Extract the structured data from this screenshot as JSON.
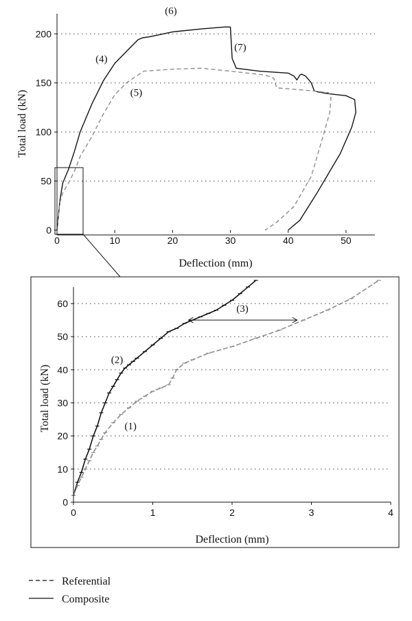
{
  "legend": [
    {
      "label": "Referential",
      "style": "dashed",
      "color": "#111111"
    },
    {
      "label": "Composite",
      "style": "solid",
      "color": "#111111"
    }
  ],
  "colors": {
    "composite": "#111111",
    "referential": "#8c8c8c"
  },
  "chart_data": [
    {
      "type": "line",
      "xlabel": "Deflection (mm)",
      "ylabel": "Total load (kN)",
      "xlim": [
        0,
        55
      ],
      "ylim": [
        0,
        210
      ],
      "xticks": [
        0,
        10,
        20,
        30,
        40,
        50
      ],
      "yticks": [
        0,
        50,
        100,
        150,
        200
      ],
      "grid": "horizontal dotted",
      "annotations": [
        {
          "text": "(4)",
          "x": 7.7,
          "y": 171
        },
        {
          "text": "(5)",
          "x": 13.7,
          "y": 137
        },
        {
          "text": "(6)",
          "x": 19.7,
          "y": 220
        },
        {
          "text": "(7)",
          "x": 31.7,
          "y": 183
        }
      ],
      "series": [
        {
          "name": "Composite",
          "style": "solid",
          "x": [
            0,
            0.5,
            1,
            2,
            3,
            4,
            6,
            8,
            10,
            12,
            14,
            14.8,
            16,
            20,
            25,
            29,
            30,
            30.3,
            31,
            35,
            40,
            41,
            41.5,
            42,
            42.3,
            43,
            44,
            44.5,
            45,
            46,
            47,
            50,
            51.5,
            51.7,
            51,
            49,
            45,
            42,
            40
          ],
          "y": [
            0,
            30,
            48,
            62,
            80,
            100,
            128,
            152,
            170,
            182,
            194,
            196,
            197,
            202,
            205,
            207,
            207,
            175,
            165,
            162,
            160,
            157,
            153,
            158,
            159,
            157,
            150,
            142,
            141,
            140,
            139,
            137,
            133,
            120,
            105,
            78,
            38,
            10,
            0
          ]
        },
        {
          "name": "Referential",
          "style": "dashed",
          "x": [
            0,
            0.5,
            1,
            2,
            3,
            4,
            6,
            8,
            10,
            12,
            14,
            15,
            20,
            25,
            30,
            36,
            37.5,
            38,
            40,
            44,
            47,
            47.4,
            47.2,
            46,
            44,
            41,
            38,
            36
          ],
          "y": [
            0,
            28,
            38,
            48,
            60,
            75,
            95,
            118,
            138,
            150,
            158,
            162,
            164,
            165,
            162,
            158,
            155,
            145,
            144,
            142,
            140,
            135,
            120,
            95,
            55,
            24,
            8,
            0
          ]
        }
      ]
    },
    {
      "type": "line",
      "xlabel": "Deflection (mm)",
      "ylabel": "Total load (kN)",
      "xlim": [
        0,
        4
      ],
      "ylim": [
        0,
        66
      ],
      "xticks": [
        0,
        1,
        2,
        3,
        4
      ],
      "yticks": [
        0,
        10,
        20,
        30,
        40,
        50,
        60
      ],
      "grid": "horizontal dotted",
      "annotations": [
        {
          "text": "(1)",
          "x": 0.72,
          "y": 22
        },
        {
          "text": "(2)",
          "x": 0.55,
          "y": 42
        },
        {
          "text": "(3)",
          "x": 2.13,
          "y": 57.5
        }
      ],
      "arrow": {
        "x1": 1.45,
        "x2": 2.82,
        "y": 55
      },
      "series": [
        {
          "name": "Composite",
          "style": "solid",
          "x": [
            0,
            0.05,
            0.1,
            0.15,
            0.2,
            0.25,
            0.3,
            0.35,
            0.4,
            0.45,
            0.5,
            0.55,
            0.6,
            0.65,
            0.7,
            0.75,
            0.8,
            0.9,
            1.0,
            1.1,
            1.2,
            1.3,
            1.4,
            1.5,
            1.6,
            1.7,
            1.8,
            1.9,
            2.0,
            2.1,
            2.2,
            2.3
          ],
          "y": [
            2,
            6,
            9,
            13,
            16,
            20,
            23,
            27,
            30,
            33,
            35,
            37,
            39,
            40.5,
            41.5,
            42.5,
            43.5,
            45.5,
            47.5,
            49.5,
            51.5,
            52.5,
            54,
            55,
            56,
            57,
            58,
            59.5,
            61,
            63,
            65,
            67
          ]
        },
        {
          "name": "Referential",
          "style": "dashed",
          "x": [
            0,
            0.05,
            0.1,
            0.15,
            0.2,
            0.25,
            0.3,
            0.35,
            0.4,
            0.5,
            0.6,
            0.7,
            0.8,
            0.9,
            1.0,
            1.1,
            1.2,
            1.25,
            1.3,
            1.4,
            1.5,
            1.7,
            2.0,
            2.3,
            2.6,
            2.9,
            3.2,
            3.5,
            3.85
          ],
          "y": [
            2,
            5,
            7.5,
            10,
            12.5,
            15,
            17,
            19,
            21,
            24,
            26.5,
            28.5,
            30.5,
            32,
            33.5,
            34.5,
            35.5,
            37.5,
            40,
            42,
            43,
            45,
            47,
            49.5,
            52,
            55,
            58,
            61.5,
            67
          ]
        }
      ]
    }
  ]
}
